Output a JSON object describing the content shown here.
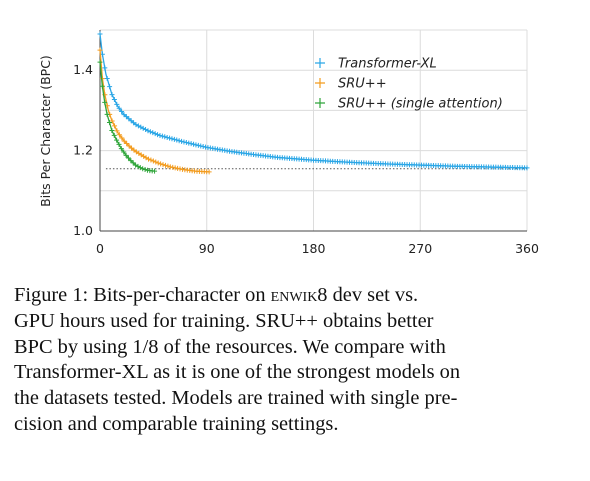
{
  "chart_data": {
    "type": "line",
    "title": "",
    "xlabel": "",
    "ylabel": "Bits Per Character (BPC)",
    "xlim": [
      0,
      360
    ],
    "ylim": [
      1.0,
      1.5
    ],
    "xticks": [
      0,
      90,
      180,
      270,
      360
    ],
    "yticks": [
      1.0,
      1.1,
      1.2,
      1.3,
      1.4,
      1.5
    ],
    "ytick_labels": [
      "1.0",
      "",
      "1.2",
      "",
      "1.4",
      ""
    ],
    "grid": true,
    "legend_position": "top-right",
    "reference_line": {
      "y": 1.155,
      "style": "dotted"
    },
    "series": [
      {
        "name": "Transformer-XL",
        "color": "#2aa6e6",
        "marker": "+",
        "x": [
          0,
          2,
          5,
          10,
          15,
          20,
          30,
          40,
          50,
          60,
          70,
          80,
          90,
          110,
          130,
          150,
          180,
          210,
          240,
          270,
          300,
          330,
          360
        ],
        "y": [
          1.49,
          1.44,
          1.39,
          1.34,
          1.31,
          1.29,
          1.265,
          1.25,
          1.238,
          1.23,
          1.222,
          1.215,
          1.208,
          1.198,
          1.19,
          1.183,
          1.176,
          1.171,
          1.167,
          1.164,
          1.161,
          1.159,
          1.157
        ]
      },
      {
        "name": "SRU++",
        "color": "#f39c1f",
        "marker": "+",
        "x": [
          0,
          2,
          4,
          7,
          10,
          15,
          20,
          25,
          30,
          40,
          50,
          60,
          70,
          80,
          92
        ],
        "y": [
          1.45,
          1.38,
          1.34,
          1.3,
          1.275,
          1.245,
          1.225,
          1.21,
          1.198,
          1.18,
          1.168,
          1.159,
          1.153,
          1.149,
          1.147
        ]
      },
      {
        "name": "SRU++ (single attention)",
        "color": "#2fa53a",
        "marker": "+",
        "x": [
          0,
          2,
          4,
          6,
          8,
          10,
          14,
          18,
          22,
          26,
          30,
          35,
          40,
          46
        ],
        "y": [
          1.42,
          1.36,
          1.32,
          1.29,
          1.27,
          1.25,
          1.226,
          1.205,
          1.188,
          1.175,
          1.164,
          1.156,
          1.151,
          1.149
        ]
      }
    ]
  },
  "caption": {
    "lines": [
      {
        "parts": [
          "Figure 1:  Bits-per-character on ",
          "enwik8",
          " dev set vs."
        ]
      },
      {
        "parts": [
          "GPU hours used for training.  SRU++ obtains better"
        ]
      },
      {
        "parts": [
          "BPC by using 1/8 of the resources.  We compare with"
        ]
      },
      {
        "parts": [
          "Transformer-XL as it is one of the strongest models on"
        ]
      },
      {
        "parts": [
          "the datasets tested.  Models are trained with single pre-"
        ]
      },
      {
        "parts": [
          "cision and comparable training settings."
        ]
      }
    ]
  }
}
